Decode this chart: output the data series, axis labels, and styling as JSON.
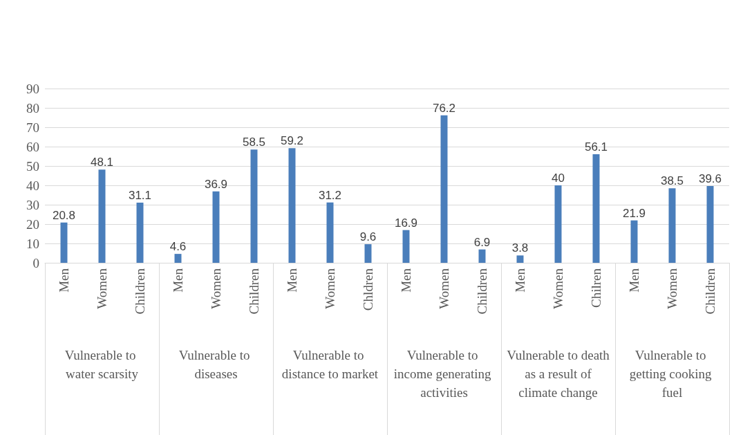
{
  "chart_data": {
    "type": "bar",
    "categories": [
      "Men",
      "Women",
      "Children",
      "Men",
      "Women",
      "Children",
      "Men",
      "Women",
      "Chldren",
      "Men",
      "Women",
      "Children",
      "Men",
      "Women",
      "Chilren",
      "Men",
      "Women",
      "Children"
    ],
    "values": [
      20.8,
      48.1,
      31.1,
      4.6,
      36.9,
      58.5,
      59.2,
      31.2,
      9.6,
      16.9,
      76.2,
      6.9,
      3.8,
      40,
      56.1,
      21.9,
      38.5,
      39.6
    ],
    "color": "#4a7ebb",
    "ylim": [
      0,
      90
    ],
    "yticks": [
      0,
      10,
      20,
      30,
      40,
      50,
      60,
      70,
      80,
      90
    ],
    "grid": "y",
    "data_labels": true,
    "annotations": [
      "Vulnerable to water scarsity",
      "Vulnerable to diseases",
      "Vulnerable to distance to market",
      "Vulnerable to income generating activities",
      "Vulnerable to death as a result of climate change",
      "Vulnerable to getting cooking fuel"
    ]
  }
}
